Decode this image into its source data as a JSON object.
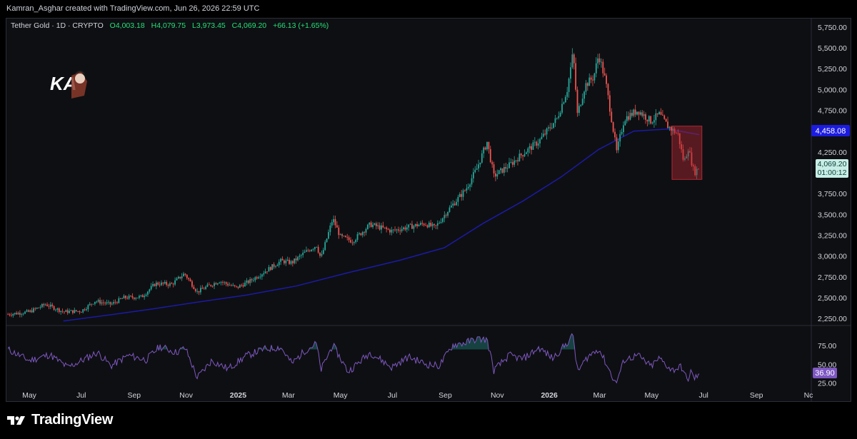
{
  "header": {
    "attribution": "Kamran_Asghar created with TradingView.com, Jun 26, 2026 22:59 UTC"
  },
  "legend": {
    "symbol": "Tether Gold · 1D · CRYPTO",
    "open": "O4,003.18",
    "high": "H4,079.75",
    "low": "L3,973.45",
    "close": "C4,069.20",
    "change": "+66.13 (+1.65%)"
  },
  "watermark": {
    "initials": "KA"
  },
  "footer": {
    "brand": "TradingView"
  },
  "colors": {
    "up": "#26a69a",
    "down": "#ef5350",
    "ma": "#1c1aa8",
    "rsi": "#7e57c2",
    "ma_badge": "#1c1ce0",
    "price_badge": "#c8ede7",
    "rsi_badge": "#7e57c2",
    "box": "#b22833"
  },
  "chart_data": {
    "type": "candlestick",
    "title": "Tether Gold · 1D · CRYPTO",
    "x_tick_labels": [
      "May",
      "Jul",
      "Sep",
      "Nov",
      "2025",
      "Mar",
      "May",
      "Jul",
      "Sep",
      "Nov",
      "2026",
      "Mar",
      "May",
      "Jul",
      "Sep",
      "Nc"
    ],
    "x_tick_dates": [
      "2024-05-01",
      "2024-07-01",
      "2024-09-01",
      "2024-11-01",
      "2025-01-01",
      "2025-03-01",
      "2025-05-01",
      "2025-07-01",
      "2025-09-01",
      "2025-11-01",
      "2026-01-01",
      "2026-03-01",
      "2026-05-01",
      "2026-07-01",
      "2026-09-01",
      "2026-11-01"
    ],
    "price_axis": {
      "ticks": [
        "5,750.00",
        "5,500.00",
        "5,250.00",
        "5,000.00",
        "4,750.00",
        "4,500.00",
        "4,250.00",
        "4,000.00",
        "3,750.00",
        "3,500.00",
        "3,250.00",
        "3,000.00",
        "2,750.00",
        "2,500.00",
        "2,250.00"
      ],
      "tick_values": [
        5750,
        5500,
        5250,
        5000,
        4750,
        4500,
        4250,
        4000,
        3750,
        3500,
        3250,
        3000,
        2750,
        2500,
        2250
      ],
      "range": [
        2200,
        5800
      ]
    },
    "price_path": [
      [
        "2024-04-06",
        2300
      ],
      [
        "2024-05-01",
        2330
      ],
      [
        "2024-05-20",
        2420
      ],
      [
        "2024-06-10",
        2330
      ],
      [
        "2024-07-01",
        2340
      ],
      [
        "2024-07-17",
        2460
      ],
      [
        "2024-08-05",
        2420
      ],
      [
        "2024-08-20",
        2500
      ],
      [
        "2024-09-10",
        2510
      ],
      [
        "2024-09-26",
        2670
      ],
      [
        "2024-10-15",
        2660
      ],
      [
        "2024-10-30",
        2790
      ],
      [
        "2024-11-14",
        2570
      ],
      [
        "2024-11-25",
        2630
      ],
      [
        "2024-12-10",
        2700
      ],
      [
        "2024-12-30",
        2620
      ],
      [
        "2025-01-15",
        2700
      ],
      [
        "2025-01-30",
        2800
      ],
      [
        "2025-02-20",
        2940
      ],
      [
        "2025-03-05",
        2920
      ],
      [
        "2025-03-20",
        3040
      ],
      [
        "2025-04-03",
        3130
      ],
      [
        "2025-04-08",
        2970
      ],
      [
        "2025-04-22",
        3450
      ],
      [
        "2025-05-01",
        3230
      ],
      [
        "2025-05-15",
        3180
      ],
      [
        "2025-06-05",
        3380
      ],
      [
        "2025-06-30",
        3300
      ],
      [
        "2025-07-20",
        3350
      ],
      [
        "2025-08-08",
        3390
      ],
      [
        "2025-08-20",
        3340
      ],
      [
        "2025-09-05",
        3560
      ],
      [
        "2025-09-25",
        3800
      ],
      [
        "2025-10-08",
        4050
      ],
      [
        "2025-10-20",
        4370
      ],
      [
        "2025-10-28",
        3960
      ],
      [
        "2025-11-15",
        4090
      ],
      [
        "2025-12-01",
        4230
      ],
      [
        "2025-12-20",
        4380
      ],
      [
        "2026-01-10",
        4650
      ],
      [
        "2026-01-22",
        5000
      ],
      [
        "2026-01-29",
        5450
      ],
      [
        "2026-02-03",
        4700
      ],
      [
        "2026-02-12",
        5050
      ],
      [
        "2026-02-22",
        5150
      ],
      [
        "2026-02-28",
        5420
      ],
      [
        "2026-03-08",
        5100
      ],
      [
        "2026-03-15",
        4650
      ],
      [
        "2026-03-21",
        4250
      ],
      [
        "2026-03-30",
        4650
      ],
      [
        "2026-04-15",
        4750
      ],
      [
        "2026-04-30",
        4620
      ],
      [
        "2026-05-10",
        4700
      ],
      [
        "2026-05-20",
        4560
      ],
      [
        "2026-06-01",
        4460
      ],
      [
        "2026-06-08",
        4120
      ],
      [
        "2026-06-13",
        4300
      ],
      [
        "2026-06-20",
        4000
      ],
      [
        "2026-06-26",
        4069.2
      ]
    ],
    "moving_average": {
      "value_label": "4,458.08",
      "path": [
        [
          "2024-06-10",
          2220
        ],
        [
          "2024-08-01",
          2290
        ],
        [
          "2024-09-20",
          2360
        ],
        [
          "2024-11-10",
          2440
        ],
        [
          "2025-01-10",
          2530
        ],
        [
          "2025-03-10",
          2640
        ],
        [
          "2025-05-10",
          2800
        ],
        [
          "2025-07-10",
          2950
        ],
        [
          "2025-08-31",
          3100
        ],
        [
          "2025-10-15",
          3390
        ],
        [
          "2025-12-01",
          3660
        ],
        [
          "2026-01-15",
          3950
        ],
        [
          "2026-02-28",
          4280
        ],
        [
          "2026-04-10",
          4500
        ],
        [
          "2026-05-20",
          4525
        ],
        [
          "2026-06-26",
          4458.08
        ]
      ]
    },
    "last_price": {
      "value": "4,069.20",
      "countdown": "01:00:12"
    },
    "highlight_box": {
      "from": "2026-05-25",
      "to": "2026-06-29",
      "top": 4560,
      "bottom": 3920
    },
    "rsi": {
      "value_label": "36.90",
      "ticks": [
        "75.00",
        "50.00",
        "25.00"
      ],
      "tick_values": [
        75,
        50,
        25
      ],
      "range": [
        17,
        100
      ],
      "path": [
        [
          "2024-04-06",
          70
        ],
        [
          "2024-05-01",
          55
        ],
        [
          "2024-05-25",
          63
        ],
        [
          "2024-06-15",
          46
        ],
        [
          "2024-07-05",
          57
        ],
        [
          "2024-07-20",
          66
        ],
        [
          "2024-08-05",
          48
        ],
        [
          "2024-08-25",
          62
        ],
        [
          "2024-09-15",
          56
        ],
        [
          "2024-10-01",
          74
        ],
        [
          "2024-10-20",
          66
        ],
        [
          "2024-10-31",
          72
        ],
        [
          "2024-11-14",
          32
        ],
        [
          "2024-12-01",
          55
        ],
        [
          "2024-12-20",
          44
        ],
        [
          "2025-01-10",
          61
        ],
        [
          "2025-01-30",
          70
        ],
        [
          "2025-02-20",
          73
        ],
        [
          "2025-03-05",
          51
        ],
        [
          "2025-03-20",
          68
        ],
        [
          "2025-04-03",
          78
        ],
        [
          "2025-04-08",
          42
        ],
        [
          "2025-04-22",
          76
        ],
        [
          "2025-05-10",
          40
        ],
        [
          "2025-06-05",
          66
        ],
        [
          "2025-06-30",
          46
        ],
        [
          "2025-07-20",
          60
        ],
        [
          "2025-08-10",
          50
        ],
        [
          "2025-08-25",
          48
        ],
        [
          "2025-09-10",
          76
        ],
        [
          "2025-09-25",
          79
        ],
        [
          "2025-10-08",
          84
        ],
        [
          "2025-10-20",
          83
        ],
        [
          "2025-10-28",
          42
        ],
        [
          "2025-11-15",
          62
        ],
        [
          "2025-12-01",
          57
        ],
        [
          "2025-12-20",
          72
        ],
        [
          "2026-01-05",
          58
        ],
        [
          "2026-01-20",
          76
        ],
        [
          "2026-01-29",
          89
        ],
        [
          "2026-02-03",
          40
        ],
        [
          "2026-02-15",
          60
        ],
        [
          "2026-02-28",
          71
        ],
        [
          "2026-03-10",
          48
        ],
        [
          "2026-03-20",
          24
        ],
        [
          "2026-03-30",
          56
        ],
        [
          "2026-04-15",
          62
        ],
        [
          "2026-04-30",
          47
        ],
        [
          "2026-05-10",
          58
        ],
        [
          "2026-05-25",
          42
        ],
        [
          "2026-06-05",
          47
        ],
        [
          "2026-06-12",
          28
        ],
        [
          "2026-06-16",
          40
        ],
        [
          "2026-06-20",
          31
        ],
        [
          "2026-06-26",
          36.9
        ]
      ]
    }
  }
}
